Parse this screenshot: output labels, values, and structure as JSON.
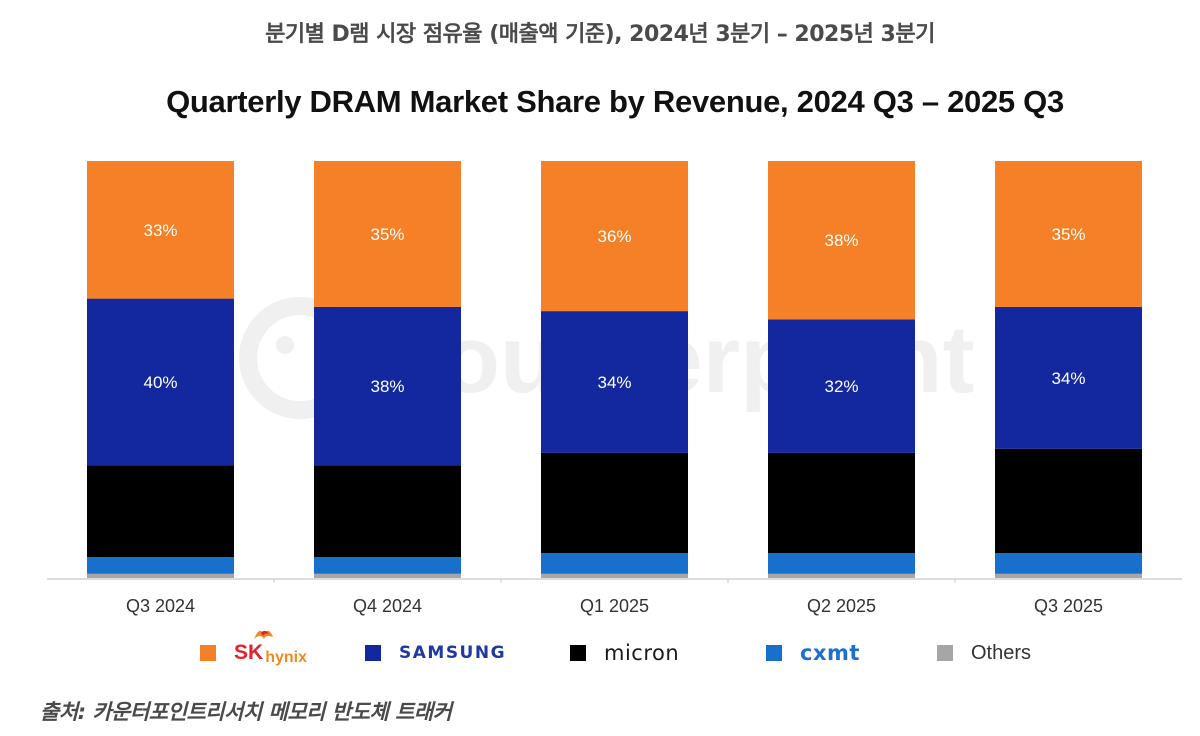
{
  "header": {
    "korean_title": "분기별 D램 시장 점유율 (매출액 기준), 2024년 3분기 – 2025년 3분기"
  },
  "chart_data": {
    "type": "bar",
    "stacked": true,
    "normalized": true,
    "title": "Quarterly DRAM Market Share by Revenue, 2024 Q3 – 2025 Q3",
    "xlabel": "",
    "ylabel": "",
    "ylim": [
      0,
      100
    ],
    "grid": false,
    "legend_position": "bottom",
    "watermark": "Counterpoint",
    "categories": [
      "Q3 2024",
      "Q4 2024",
      "Q1 2025",
      "Q2 2025",
      "Q3 2025"
    ],
    "series": [
      {
        "name": "Others",
        "legend_label": "Others",
        "color": "#a6a6a6",
        "values": [
          1,
          1,
          1,
          1,
          1
        ],
        "labels": [
          null,
          null,
          null,
          null,
          null
        ]
      },
      {
        "name": "CXMT",
        "legend_label": "cxmt",
        "color": "#1870cc",
        "values": [
          4,
          4,
          5,
          5,
          5
        ],
        "labels": [
          null,
          null,
          null,
          null,
          null
        ]
      },
      {
        "name": "Micron",
        "legend_label": "micron",
        "color": "#000000",
        "values": [
          22,
          22,
          24,
          24,
          25
        ],
        "labels": [
          null,
          null,
          null,
          null,
          null
        ]
      },
      {
        "name": "Samsung",
        "legend_label": "SAMSUNG",
        "color": "#13279e",
        "values": [
          40,
          38,
          34,
          32,
          34
        ],
        "labels": [
          "40%",
          "38%",
          "34%",
          "32%",
          "34%"
        ]
      },
      {
        "name": "SK hynix",
        "legend_label": "SK hynix",
        "color": "#f58027",
        "values": [
          33,
          35,
          36,
          38,
          35
        ],
        "labels": [
          "33%",
          "35%",
          "36%",
          "38%",
          "35%"
        ]
      }
    ]
  },
  "legend": {
    "sk_main": "SK",
    "sk_sub": "hynix",
    "samsung": "SAMSUNG",
    "micron": "micron",
    "cxmt": "cxmt",
    "others": "Others"
  },
  "footer": {
    "source": "출처: 카운터포인트리서치 메모리 반도체 트래커"
  }
}
